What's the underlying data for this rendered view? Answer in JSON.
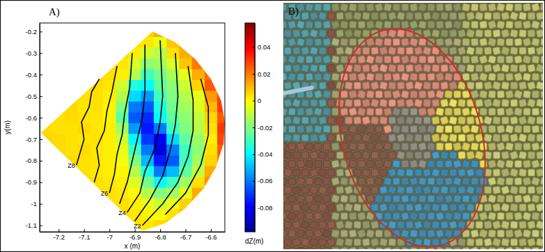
{
  "chart_data": {
    "type": "heatmap",
    "panel_label": "A)",
    "x_label": "x (m)",
    "y_label": "y(m)",
    "xlim": [
      -7.275,
      -6.545
    ],
    "ylim": [
      -1.13,
      -0.16
    ],
    "xticks": [
      -7.2,
      -7.1,
      -7,
      -6.9,
      -6.8,
      -6.7,
      -6.6
    ],
    "yticks": [
      -1.1,
      -1,
      -0.9,
      -0.8,
      -0.7,
      -0.6,
      -0.5,
      -0.4,
      -0.3,
      -0.2
    ],
    "heatmap": {
      "x": [
        -7.25,
        -7.2,
        -7.15,
        -7.1,
        -7.05,
        -7,
        -6.95,
        -6.9,
        -6.85,
        -6.8,
        -6.75,
        -6.7,
        -6.65,
        -6.6,
        -6.55
      ],
      "y": [
        -0.2,
        -0.25,
        -0.3,
        -0.35,
        -0.4,
        -0.45,
        -0.5,
        -0.55,
        -0.6,
        -0.65,
        -0.7,
        -0.75,
        -0.8,
        -0.85,
        -0.9,
        -0.95,
        -1,
        -1.05,
        -1.1
      ],
      "values": [
        [
          null,
          null,
          null,
          null,
          null,
          null,
          null,
          null,
          0.006,
          0.012,
          null,
          null,
          null,
          null,
          null
        ],
        [
          null,
          null,
          null,
          null,
          null,
          null,
          null,
          0.004,
          0.003,
          -0.004,
          0.008,
          0.015,
          null,
          null,
          null
        ],
        [
          null,
          null,
          null,
          null,
          null,
          null,
          0.005,
          0.002,
          -0.008,
          -0.012,
          0.004,
          0.012,
          0.018,
          null,
          null
        ],
        [
          null,
          null,
          null,
          null,
          null,
          0.004,
          0.003,
          -0.006,
          -0.018,
          -0.015,
          -0.006,
          0.008,
          0.02,
          0.014,
          null
        ],
        [
          null,
          null,
          null,
          null,
          0.005,
          0.004,
          0.002,
          -0.012,
          -0.03,
          -0.022,
          -0.014,
          -0.004,
          0.012,
          0.022,
          null
        ],
        [
          null,
          null,
          null,
          0.004,
          0.005,
          0.003,
          -0.008,
          -0.035,
          -0.04,
          -0.025,
          -0.018,
          -0.008,
          0.006,
          0.025,
          null
        ],
        [
          null,
          null,
          0.005,
          0.004,
          0.004,
          0.002,
          -0.012,
          -0.045,
          -0.055,
          -0.03,
          -0.02,
          -0.012,
          -0.004,
          0.015,
          0.028
        ],
        [
          null,
          0.004,
          0.005,
          0.003,
          0.004,
          0.001,
          -0.02,
          -0.06,
          -0.065,
          -0.035,
          -0.022,
          -0.015,
          -0.006,
          0.01,
          0.03
        ],
        [
          0.006,
          0.004,
          0.005,
          0.004,
          0.003,
          0.001,
          -0.025,
          -0.065,
          -0.072,
          -0.04,
          -0.025,
          -0.018,
          -0.01,
          0.006,
          0.025
        ],
        [
          0.005,
          0.004,
          0.004,
          0.005,
          0.003,
          0.002,
          -0.015,
          -0.055,
          -0.075,
          -0.06,
          -0.03,
          -0.02,
          -0.012,
          0.004,
          0.03
        ],
        [
          0.006,
          0.005,
          0.004,
          0.003,
          0.004,
          0.002,
          -0.008,
          -0.04,
          -0.07,
          -0.08,
          -0.045,
          -0.025,
          -0.016,
          0.002,
          0.028
        ],
        [
          null,
          0.005,
          0.004,
          0.005,
          0.003,
          0.002,
          -0.004,
          -0.03,
          -0.06,
          -0.085,
          -0.06,
          -0.03,
          -0.018,
          0.004,
          0.024
        ],
        [
          null,
          0.004,
          0.005,
          0.004,
          0.003,
          0.002,
          -0.002,
          -0.02,
          -0.05,
          -0.075,
          -0.065,
          -0.03,
          -0.015,
          0.006,
          0.02
        ],
        [
          null,
          null,
          0.005,
          0.004,
          0.003,
          0.002,
          0.001,
          -0.012,
          -0.035,
          -0.06,
          -0.05,
          -0.025,
          -0.01,
          0.012,
          null
        ],
        [
          null,
          null,
          null,
          0.004,
          0.004,
          0.003,
          0.002,
          -0.006,
          -0.022,
          -0.04,
          -0.03,
          -0.015,
          0.004,
          0.016,
          null
        ],
        [
          null,
          null,
          null,
          null,
          0.005,
          0.004,
          0.003,
          0,
          -0.012,
          -0.02,
          -0.015,
          -0.004,
          0.012,
          null,
          null
        ],
        [
          null,
          null,
          null,
          null,
          null,
          0.004,
          0.004,
          0.002,
          -0.004,
          -0.008,
          -0.004,
          0.006,
          0.014,
          null,
          null
        ],
        [
          null,
          null,
          null,
          null,
          null,
          null,
          0.005,
          0.003,
          0.001,
          -0.002,
          0.004,
          0.01,
          null,
          null,
          null
        ],
        [
          null,
          null,
          null,
          null,
          null,
          null,
          null,
          0.004,
          0.003,
          0.005,
          0.008,
          null,
          null,
          null,
          null
        ]
      ],
      "boundary": {
        "x": [
          -7.27,
          -6.83,
          -6.74,
          -6.66,
          -6.6,
          -6.56,
          -6.545,
          -6.55,
          -6.58,
          -6.63,
          -6.7,
          -6.78,
          -6.87
        ],
        "y": [
          -0.67,
          -0.2,
          -0.25,
          -0.33,
          -0.42,
          -0.52,
          -0.62,
          -0.72,
          -0.83,
          -0.93,
          -1.02,
          -1.09,
          -1.125
        ]
      }
    },
    "colorbar": {
      "label": "dZ(m)",
      "lim": [
        -0.098,
        0.058
      ],
      "ticks": [
        -0.08,
        -0.06,
        -0.04,
        -0.02,
        0,
        0.02,
        0.04
      ]
    },
    "contours": [
      {
        "label": "Z8",
        "x": [
          -7.13,
          -7.12,
          -7.1,
          -7.11,
          -7.08,
          -7.07,
          -7.04
        ],
        "y": [
          -0.82,
          -0.78,
          -0.7,
          -0.62,
          -0.55,
          -0.48,
          -0.42
        ]
      },
      {
        "label": null,
        "x": [
          -7.06,
          -7.04,
          -7.05,
          -7.02,
          -7.01,
          -6.99,
          -6.97
        ],
        "y": [
          -0.9,
          -0.82,
          -0.74,
          -0.66,
          -0.57,
          -0.48,
          -0.36
        ]
      },
      {
        "label": "Z6",
        "x": [
          -7,
          -6.98,
          -6.97,
          -6.95,
          -6.94,
          -6.92,
          -6.91
        ],
        "y": [
          -0.95,
          -0.86,
          -0.77,
          -0.68,
          -0.58,
          -0.46,
          -0.3
        ]
      },
      {
        "label": null,
        "x": [
          -6.96,
          -6.93,
          -6.91,
          -6.89,
          -6.87,
          -6.86,
          -6.86
        ],
        "y": [
          -1,
          -0.9,
          -0.8,
          -0.7,
          -0.6,
          -0.48,
          -0.26
        ]
      },
      {
        "label": "Z4",
        "x": [
          -6.93,
          -6.88,
          -6.86,
          -6.82,
          -6.8,
          -6.79,
          -6.8
        ],
        "y": [
          -1.04,
          -0.95,
          -0.85,
          -0.74,
          -0.62,
          -0.5,
          -0.24
        ]
      },
      {
        "label": null,
        "x": [
          -6.9,
          -6.84,
          -6.79,
          -6.76,
          -6.74,
          -6.73,
          -6.74
        ],
        "y": [
          -1.08,
          -0.98,
          -0.87,
          -0.75,
          -0.63,
          -0.5,
          -0.3
        ]
      },
      {
        "label": "Z2",
        "x": [
          -6.87,
          -6.79,
          -6.73,
          -6.69,
          -6.67,
          -6.67,
          -6.69
        ],
        "y": [
          -1.1,
          -1,
          -0.9,
          -0.78,
          -0.66,
          -0.52,
          -0.36
        ]
      },
      {
        "label": null,
        "x": [
          -6.78,
          -6.7,
          -6.64,
          -6.61,
          -6.61,
          -6.64
        ],
        "y": [
          -1.05,
          -0.95,
          -0.82,
          -0.68,
          -0.55,
          -0.42
        ]
      }
    ]
  },
  "photo": {
    "panel_label": "B)"
  }
}
